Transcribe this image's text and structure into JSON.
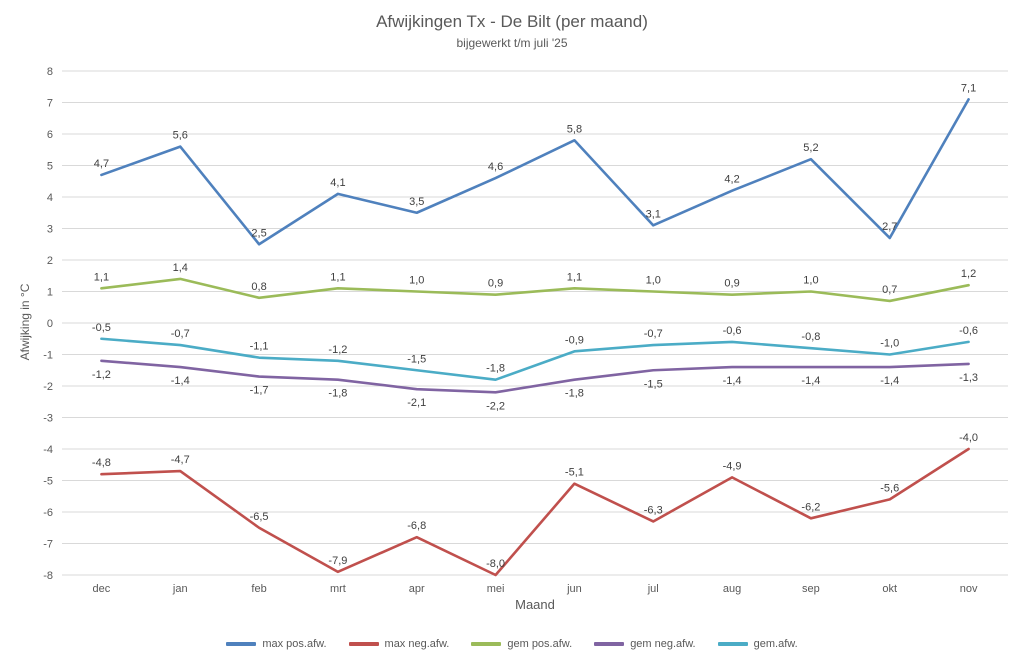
{
  "chart_data": {
    "type": "line",
    "title": "Afwijkingen Tx - De Bilt (per maand)",
    "subtitle": "bijgewerkt t/m juli '25",
    "xlabel": "Maand",
    "ylabel": "Afwijking in °C",
    "ylim": [
      -8,
      8
    ],
    "ytick_step": 1,
    "grid": true,
    "legend_position": "bottom",
    "decimal_separator": ",",
    "categories": [
      "dec",
      "jan",
      "feb",
      "mrt",
      "apr",
      "mei",
      "jun",
      "jul",
      "aug",
      "sep",
      "okt",
      "nov"
    ],
    "series": [
      {
        "name": "max pos.afw.",
        "key": "max-pos-afw",
        "color": "#4F81BD",
        "label_position": "above",
        "values": [
          4.7,
          5.6,
          2.5,
          4.1,
          3.5,
          4.6,
          5.8,
          3.1,
          4.2,
          5.2,
          2.7,
          7.1
        ]
      },
      {
        "name": "max neg.afw.",
        "key": "max-neg-afw",
        "color": "#C0504D",
        "label_position": "above",
        "values": [
          -4.8,
          -4.7,
          -6.5,
          -7.9,
          -6.8,
          -8.0,
          -5.1,
          -6.3,
          -4.9,
          -6.2,
          -5.6,
          -4.0
        ]
      },
      {
        "name": "gem pos.afw.",
        "key": "gem-pos-afw",
        "color": "#9BBB59",
        "label_position": "above",
        "values": [
          1.1,
          1.4,
          0.8,
          1.1,
          1.0,
          0.9,
          1.1,
          1.0,
          0.9,
          1.0,
          0.7,
          1.2
        ]
      },
      {
        "name": "gem neg.afw.",
        "key": "gem-neg-afw",
        "color": "#8064A2",
        "label_position": "below",
        "values": [
          -1.2,
          -1.4,
          -1.7,
          -1.8,
          -2.1,
          -2.2,
          -1.8,
          -1.5,
          -1.4,
          -1.4,
          -1.4,
          -1.3
        ]
      },
      {
        "name": "gem.afw.",
        "key": "gem-afw",
        "color": "#4BACC6",
        "label_position": "above",
        "values": [
          -0.5,
          -0.7,
          -1.1,
          -1.2,
          -1.5,
          -1.8,
          -0.9,
          -0.7,
          -0.6,
          -0.8,
          -1.0,
          -0.6
        ]
      }
    ],
    "styles": {
      "grid_color": "#D9D9D9",
      "tick_text_color": "#595959",
      "data_label_color": "#404040"
    }
  }
}
